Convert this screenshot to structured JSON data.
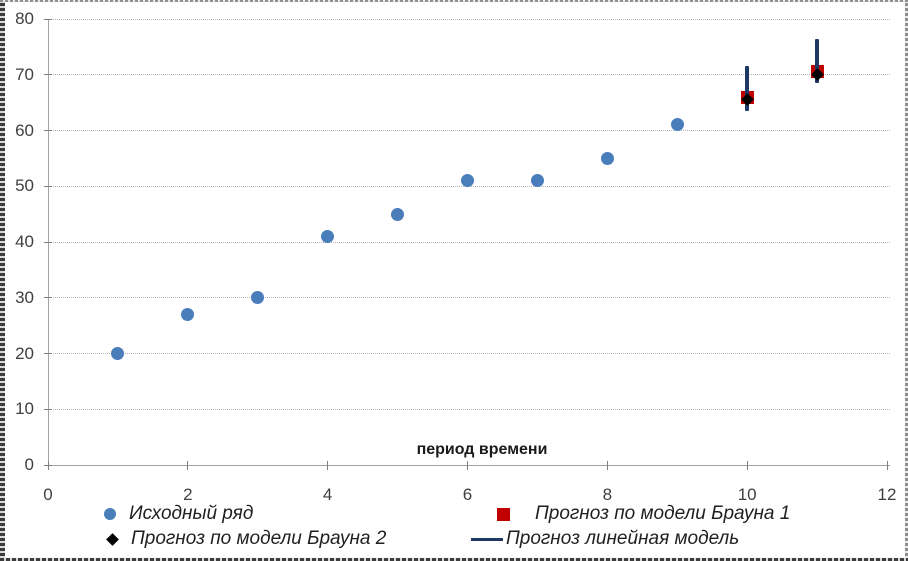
{
  "chart_data": {
    "type": "scatter",
    "title": "",
    "xlabel": "период времени",
    "ylabel": "",
    "xlim": [
      0,
      12
    ],
    "ylim": [
      0,
      80
    ],
    "x_ticks": [
      0,
      2,
      4,
      6,
      8,
      10,
      12
    ],
    "y_ticks": [
      0,
      10,
      20,
      30,
      40,
      50,
      60,
      70,
      80
    ],
    "grid": "horizontal-dotted",
    "legend_position": "bottom",
    "series": [
      {
        "name": "Исходный ряд",
        "marker": "circle",
        "color": "#4A7EBB",
        "points": [
          [
            1,
            20
          ],
          [
            2,
            27
          ],
          [
            3,
            30
          ],
          [
            4,
            41
          ],
          [
            5,
            45
          ],
          [
            6,
            51
          ],
          [
            7,
            51
          ],
          [
            8,
            55
          ],
          [
            9,
            61
          ]
        ]
      },
      {
        "name": "Прогноз по модели Брауна 1",
        "marker": "square",
        "color": "#C00000",
        "points": [
          [
            10,
            66
          ],
          [
            11,
            70.5
          ]
        ]
      },
      {
        "name": "Прогноз по модели Брауна 2",
        "marker": "diamond",
        "color": "#000000",
        "points": [
          [
            10,
            65.5
          ],
          [
            11,
            70
          ]
        ]
      },
      {
        "name": "Прогноз линейная модель",
        "marker": "vertical-interval-line",
        "color": "#1F3864",
        "segments": [
          {
            "x": 10,
            "low": 63.5,
            "high": 71.5,
            "center": 67.5
          },
          {
            "x": 11,
            "low": 68.5,
            "high": 76.5,
            "center": 72.5
          }
        ]
      }
    ],
    "colors": {
      "gridline": "#B5B5B5",
      "axis": "#A3A3A3",
      "tick_label": "#3F3F3F"
    }
  }
}
